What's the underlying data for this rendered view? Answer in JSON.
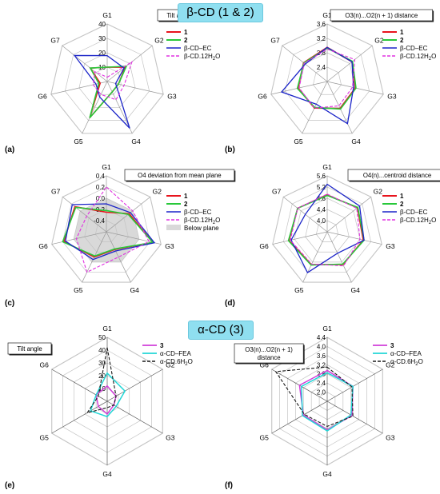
{
  "banners": {
    "top": "β-CD (1 & 2)",
    "bottom": "α-CD (3)"
  },
  "colors": {
    "s1": "#e8141d",
    "s2": "#28c83a",
    "ec": "#1b24c8",
    "h2o12": "#e030e0",
    "s3": "#d13fd9",
    "fea": "#23d6d6",
    "h2o6": "#1a1a1a",
    "grid": "#c4c4c4",
    "below": "#d9d9d9"
  },
  "chart_data": [
    {
      "type": "radar",
      "panel": "(a)",
      "boxTitle": "Tilt angle",
      "categories": [
        "G1",
        "G2",
        "G3",
        "G4",
        "G5",
        "G6",
        "G7"
      ],
      "rlim": [
        0,
        40
      ],
      "ticks": [
        10,
        20,
        30,
        40
      ],
      "series": [
        {
          "name": "1",
          "values": [
            10,
            16,
            8,
            8,
            28,
            5,
            15
          ]
        },
        {
          "name": "2",
          "values": [
            10,
            17,
            8,
            8,
            28,
            6,
            15
          ]
        },
        {
          "name": "β-CD–EC",
          "values": [
            18,
            15,
            6,
            36,
            12,
            8,
            29
          ]
        },
        {
          "name": "β-CD.12H2O",
          "values": [
            3,
            22,
            12,
            14,
            10,
            10,
            11
          ]
        }
      ]
    },
    {
      "type": "radar",
      "panel": "(b)",
      "boxTitle": "O3(n)...O2(n + 1) distance",
      "categories": [
        "G1",
        "G2",
        "G3",
        "G4",
        "G5",
        "G6",
        "G7"
      ],
      "rlim": [
        2.0,
        3.6
      ],
      "ticks": [
        2.4,
        2.8,
        3.2,
        3.6
      ],
      "series": [
        {
          "name": "1",
          "values": [
            2.95,
            2.88,
            2.8,
            2.83,
            2.82,
            2.83,
            2.84
          ]
        },
        {
          "name": "2",
          "values": [
            2.93,
            2.9,
            2.82,
            2.85,
            2.8,
            2.85,
            2.83
          ]
        },
        {
          "name": "β-CD–EC",
          "values": [
            2.95,
            2.88,
            2.75,
            3.3,
            2.7,
            3.3,
            2.78
          ]
        },
        {
          "name": "β-CD.12H2O",
          "values": [
            2.9,
            2.98,
            2.72,
            2.75,
            2.82,
            2.8,
            2.82
          ]
        }
      ]
    },
    {
      "type": "radar",
      "panel": "(c)",
      "boxTitle": "O4 deviation from mean plane",
      "categories": [
        "G1",
        "G2",
        "G3",
        "G4",
        "G5",
        "G6",
        "G7"
      ],
      "rlim": [
        -0.6,
        0.4
      ],
      "ticks": [
        -0.4,
        -0.2,
        0.0,
        0.2,
        0.4
      ],
      "series": [
        {
          "name": "1",
          "values": [
            -0.25,
            -0.08,
            0.25,
            -0.25,
            -0.1,
            0.18,
            0.12
          ]
        },
        {
          "name": "2",
          "values": [
            -0.22,
            -0.1,
            0.25,
            -0.26,
            -0.12,
            0.2,
            0.1
          ]
        },
        {
          "name": "β-CD–EC",
          "values": [
            -0.1,
            -0.05,
            0.28,
            -0.22,
            -0.05,
            0.15,
            0.18
          ]
        },
        {
          "name": "β-CD.12H2O",
          "values": [
            0.2,
            0.0,
            0.18,
            -0.1,
            0.2,
            -0.05,
            -0.15
          ]
        },
        {
          "name": "Below plane",
          "values": [
            0,
            0,
            0,
            0,
            0,
            0,
            0
          ]
        }
      ]
    },
    {
      "type": "radar",
      "panel": "(d)",
      "boxTitle": "O4(n)...centroid distance",
      "categories": [
        "G1",
        "G2",
        "G3",
        "G4",
        "G5",
        "G6",
        "G7"
      ],
      "rlim": [
        3.6,
        5.6
      ],
      "ticks": [
        4.0,
        4.4,
        4.8,
        5.2,
        5.6
      ],
      "series": [
        {
          "name": "1",
          "values": [
            4.92,
            4.98,
            4.92,
            4.9,
            4.9,
            5.0,
            4.95
          ]
        },
        {
          "name": "2",
          "values": [
            4.9,
            5.0,
            4.95,
            4.88,
            4.92,
            5.02,
            4.95
          ]
        },
        {
          "name": "β-CD–EC",
          "values": [
            5.3,
            5.08,
            4.95,
            4.45,
            5.22,
            4.92,
            4.6
          ]
        },
        {
          "name": "β-CD.12H2O",
          "values": [
            4.95,
            4.95,
            4.8,
            4.95,
            4.88,
            4.95,
            4.95
          ]
        }
      ]
    },
    {
      "type": "radar",
      "panel": "(e)",
      "boxTitle": "Tilt angle",
      "categories": [
        "G1",
        "G2",
        "G3",
        "G4",
        "G5",
        "G6"
      ],
      "rlim": [
        0,
        50
      ],
      "ticks": [
        10,
        20,
        30,
        40,
        50
      ],
      "series": [
        {
          "name": "3",
          "values": [
            12,
            8,
            6,
            10,
            8,
            10
          ]
        },
        {
          "name": "α-CD–FEA",
          "values": [
            22,
            16,
            8,
            12,
            15,
            10
          ]
        },
        {
          "name": "α-CD.6H2O",
          "values": [
            42,
            8,
            6,
            5,
            18,
            8
          ]
        }
      ]
    },
    {
      "type": "radar",
      "panel": "(f)",
      "boxTitle": "O3(n)...O2(n + 1) distance",
      "categories": [
        "G1",
        "G2",
        "G3",
        "G4",
        "G5",
        "G6"
      ],
      "rlim": [
        1.6,
        4.4
      ],
      "ticks": [
        2.0,
        2.4,
        2.8,
        3.2,
        3.6,
        4.0,
        4.4
      ],
      "series": [
        {
          "name": "3",
          "values": [
            2.95,
            2.9,
            2.85,
            2.85,
            2.8,
            3.0
          ]
        },
        {
          "name": "α-CD–FEA",
          "values": [
            2.85,
            2.9,
            2.8,
            2.9,
            2.85,
            2.9
          ]
        },
        {
          "name": "α-CD.6H2O",
          "values": [
            3.1,
            2.85,
            2.9,
            2.7,
            2.75,
            4.2
          ]
        }
      ]
    }
  ]
}
